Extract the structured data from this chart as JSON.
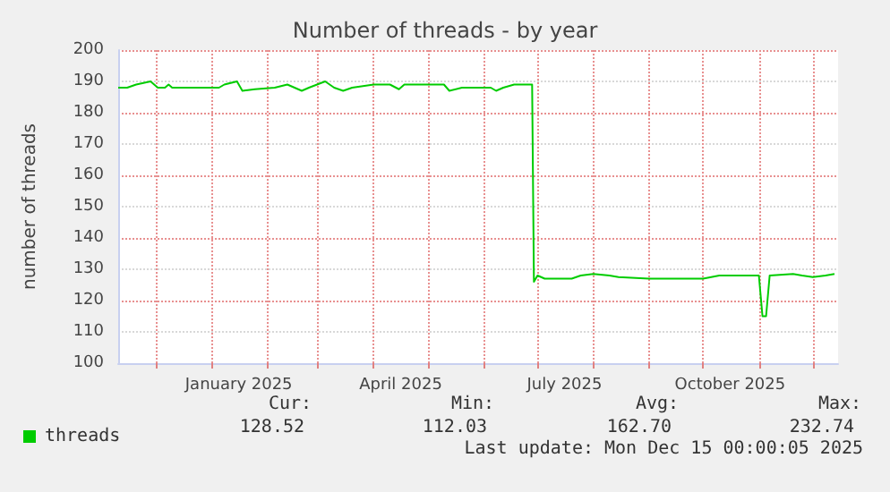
{
  "chart_data": {
    "type": "line",
    "title": "Number of threads - by year",
    "ylabel": "number of threads",
    "x": [
      "2024-11-10",
      "2024-11-15",
      "2024-11-20",
      "2024-11-28",
      "2024-12-02",
      "2024-12-06",
      "2024-12-08",
      "2024-12-10",
      "2025-01-05",
      "2025-01-08",
      "2025-01-15",
      "2025-01-18",
      "2025-01-25",
      "2025-02-05",
      "2025-02-12",
      "2025-02-20",
      "2025-02-24",
      "2025-03-05",
      "2025-03-10",
      "2025-03-15",
      "2025-03-20",
      "2025-04-01",
      "2025-04-10",
      "2025-04-15",
      "2025-04-18",
      "2025-05-01",
      "2025-05-10",
      "2025-05-13",
      "2025-05-20",
      "2025-06-05",
      "2025-06-08",
      "2025-06-12",
      "2025-06-18",
      "2025-06-28",
      "2025-06-29",
      "2025-07-01",
      "2025-07-05",
      "2025-07-10",
      "2025-07-20",
      "2025-07-25",
      "2025-08-01",
      "2025-08-10",
      "2025-08-15",
      "2025-09-01",
      "2025-09-20",
      "2025-10-01",
      "2025-10-10",
      "2025-10-25",
      "2025-11-01",
      "2025-11-03",
      "2025-11-05",
      "2025-11-07",
      "2025-11-20",
      "2025-11-25",
      "2025-12-01",
      "2025-12-08",
      "2025-12-13"
    ],
    "series": [
      {
        "name": "threads",
        "color": "#00cc00",
        "values": [
          188,
          188,
          189,
          190,
          188,
          188,
          189,
          188,
          188,
          189,
          190,
          187,
          187.5,
          188,
          189,
          187,
          188,
          190,
          188,
          187,
          188,
          189,
          189,
          187.5,
          189,
          189,
          189,
          187,
          188,
          188,
          187,
          188,
          189,
          189,
          126,
          128,
          127,
          127,
          127,
          128,
          128.5,
          128,
          127.5,
          127,
          127,
          127,
          128,
          128,
          128,
          115,
          115,
          128,
          128.5,
          128,
          127.5,
          128,
          128.5
        ]
      }
    ],
    "xlim": [
      "2024-11-10",
      "2025-12-15"
    ],
    "xticks": [
      {
        "value": "2024-12-01",
        "label": null
      },
      {
        "value": "2025-01-01",
        "label": null
      },
      {
        "value": "2025-01-16",
        "label": "January 2025"
      },
      {
        "value": "2025-02-01",
        "label": null
      },
      {
        "value": "2025-03-01",
        "label": null
      },
      {
        "value": "2025-04-01",
        "label": null
      },
      {
        "value": "2025-04-16",
        "label": "April 2025"
      },
      {
        "value": "2025-05-01",
        "label": null
      },
      {
        "value": "2025-06-01",
        "label": null
      },
      {
        "value": "2025-07-01",
        "label": null
      },
      {
        "value": "2025-07-16",
        "label": "July 2025"
      },
      {
        "value": "2025-08-01",
        "label": null
      },
      {
        "value": "2025-09-01",
        "label": null
      },
      {
        "value": "2025-10-01",
        "label": null
      },
      {
        "value": "2025-10-16",
        "label": "October 2025"
      },
      {
        "value": "2025-11-01",
        "label": null
      },
      {
        "value": "2025-12-01",
        "label": null
      }
    ],
    "ylim": [
      100,
      200
    ],
    "yticks": [
      100,
      110,
      120,
      130,
      140,
      150,
      160,
      170,
      180,
      190,
      200
    ],
    "grid": true,
    "legend": "bottom left",
    "marker": "none",
    "line_style": "solid",
    "annotations": [
      "Cur:",
      "Min:",
      "Avg:",
      "Max:",
      "128.52",
      "112.03",
      "162.70",
      "232.74",
      "Last update: Mon Dec 15 00:00:05 2025"
    ]
  }
}
